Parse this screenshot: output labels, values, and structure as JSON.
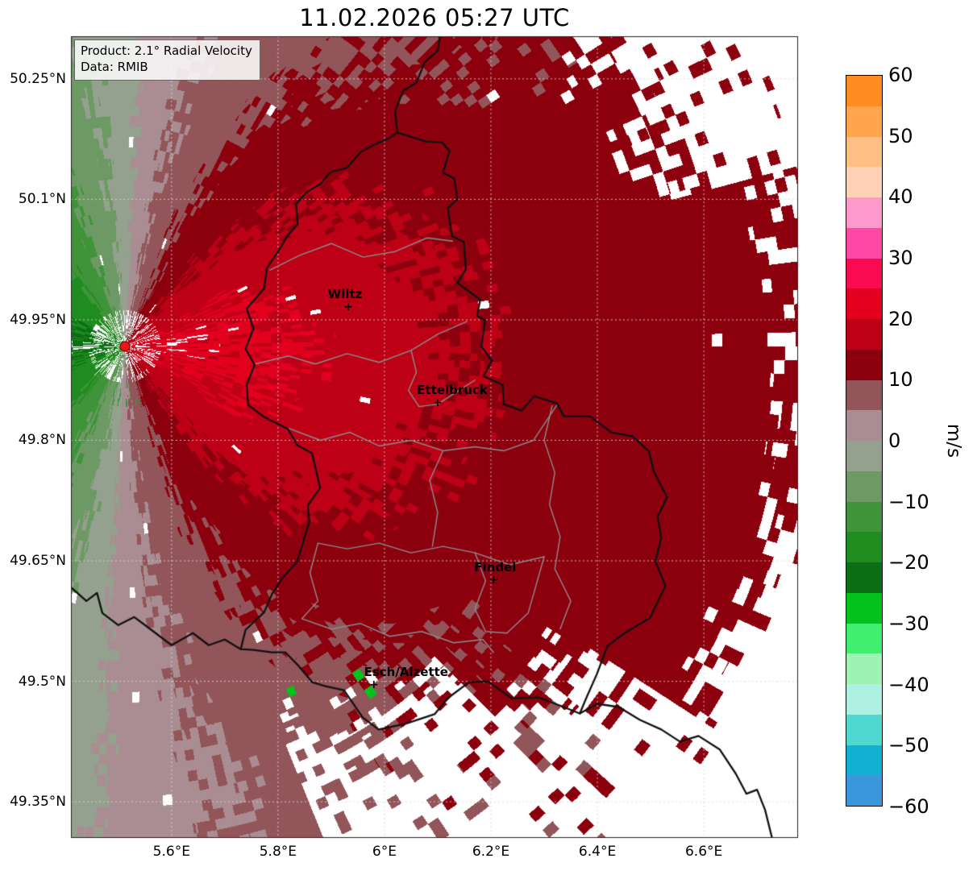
{
  "chart_data": {
    "type": "heatmap",
    "title": "11.02.2026 05:27 UTC",
    "product_label": "Product: 2.1° Radial Velocity",
    "data_label": "Data: RMIB",
    "unit": "m/s",
    "axes": {
      "xlim_lon": [
        5.411,
        6.777
      ],
      "ylim_lat": [
        49.305,
        50.303
      ],
      "x_tick_lons": [
        5.6,
        5.8,
        6.0,
        6.2,
        6.4,
        6.6
      ],
      "x_tick_labels": [
        "5.6°E",
        "5.8°E",
        "6°E",
        "6.2°E",
        "6.4°E",
        "6.6°E"
      ],
      "y_tick_lats": [
        50.25,
        50.1,
        49.95,
        49.8,
        49.65,
        49.5,
        49.35
      ],
      "y_tick_labels": [
        "50.25°N",
        "50.1°N",
        "49.95°N",
        "49.8°N",
        "49.65°N",
        "49.5°N",
        "49.35°N"
      ],
      "grid_style": "dashed",
      "grid_color": "#d2d2d2"
    },
    "colorbar": {
      "vmin": -60,
      "vmax": 60,
      "band_step": 5,
      "tick_values": [
        60,
        50,
        40,
        30,
        20,
        10,
        0,
        -10,
        -20,
        -30,
        -40,
        -50,
        -60
      ],
      "tick_labels": [
        "60",
        "50",
        "40",
        "30",
        "20",
        "10",
        "0",
        "−10",
        "−20",
        "−30",
        "−40",
        "−50",
        "−60"
      ],
      "band_colors_top_to_bottom": [
        "#ff8c1f",
        "#ffa64d",
        "#ffbf85",
        "#ffd2b8",
        "#ff99cc",
        "#ff47a3",
        "#fa0a50",
        "#e3001f",
        "#bd0016",
        "#8c000e",
        "#92555a",
        "#a98d92",
        "#93a18e",
        "#6d9a64",
        "#3f9338",
        "#1e8c1e",
        "#0c6e14",
        "#04c21c",
        "#40ef6e",
        "#9ef2b4",
        "#aef0e2",
        "#4fd8cf",
        "#13b1d1",
        "#3b97db"
      ]
    },
    "radar_site": {
      "lon": 5.512,
      "lat": 49.917,
      "marker_color": "#e81717"
    },
    "cities": [
      {
        "name": "Wiltz",
        "lon": 5.932,
        "lat": 49.966,
        "label_dx": -4
      },
      {
        "name": "Ettelbruck",
        "lon": 6.1,
        "lat": 49.847,
        "label_dx": 18
      },
      {
        "name": "Findel",
        "lon": 6.205,
        "lat": 49.626,
        "label_dx": 2
      },
      {
        "name": "Esch/Alzette",
        "lon": 5.98,
        "lat": 49.496,
        "label_dx": 40
      }
    ],
    "velocity_field": {
      "description": "Doppler radial velocity: outbound flow (dark red, ~10-22 m/s) everywhere east of the radar, inbound flow (green, ~5-22 m/s) west of the radar, grey near-zero band along the north-south zero isodop through the radar site; white = no data (far range, ground clutter and echo gaps to the NE and S).",
      "speed_near_radar_mps": 21,
      "speed_far_range_mps": 13,
      "flow_toward_azimuth_deg_from_east": 3
    },
    "map_borders": {
      "country_border_color": "#111111",
      "district_border_color": "#8c8c8c",
      "luxembourg_ring": [
        [
          6.024,
          50.183
        ],
        [
          6.078,
          50.172
        ],
        [
          6.108,
          50.171
        ],
        [
          6.122,
          50.16
        ],
        [
          6.11,
          50.133
        ],
        [
          6.131,
          50.126
        ],
        [
          6.137,
          50.1
        ],
        [
          6.119,
          50.089
        ],
        [
          6.127,
          50.054
        ],
        [
          6.149,
          50.047
        ],
        [
          6.153,
          50.013
        ],
        [
          6.137,
          49.996
        ],
        [
          6.18,
          49.975
        ],
        [
          6.174,
          49.955
        ],
        [
          6.189,
          49.949
        ],
        [
          6.182,
          49.917
        ],
        [
          6.202,
          49.899
        ],
        [
          6.186,
          49.88
        ],
        [
          6.222,
          49.869
        ],
        [
          6.224,
          49.845
        ],
        [
          6.258,
          49.837
        ],
        [
          6.281,
          49.855
        ],
        [
          6.324,
          49.846
        ],
        [
          6.337,
          49.83
        ],
        [
          6.386,
          49.83
        ],
        [
          6.426,
          49.81
        ],
        [
          6.466,
          49.805
        ],
        [
          6.497,
          49.786
        ],
        [
          6.506,
          49.761
        ],
        [
          6.531,
          49.729
        ],
        [
          6.513,
          49.705
        ],
        [
          6.52,
          49.679
        ],
        [
          6.509,
          49.649
        ],
        [
          6.528,
          49.619
        ],
        [
          6.499,
          49.579
        ],
        [
          6.449,
          49.559
        ],
        [
          6.419,
          49.544
        ],
        [
          6.399,
          49.509
        ],
        [
          6.379,
          49.479
        ],
        [
          6.367,
          49.46
        ],
        [
          6.329,
          49.47
        ],
        [
          6.289,
          49.48
        ],
        [
          6.239,
          49.479
        ],
        [
          6.194,
          49.5
        ],
        [
          6.159,
          49.499
        ],
        [
          6.119,
          49.479
        ],
        [
          6.094,
          49.459
        ],
        [
          6.039,
          49.447
        ],
        [
          5.989,
          49.44
        ],
        [
          5.959,
          49.455
        ],
        [
          5.924,
          49.489
        ],
        [
          5.889,
          49.494
        ],
        [
          5.864,
          49.499
        ],
        [
          5.839,
          49.519
        ],
        [
          5.814,
          49.536
        ],
        [
          5.789,
          49.536
        ],
        [
          5.754,
          49.539
        ],
        [
          5.73,
          49.54
        ],
        [
          5.739,
          49.564
        ],
        [
          5.774,
          49.586
        ],
        [
          5.789,
          49.609
        ],
        [
          5.809,
          49.629
        ],
        [
          5.836,
          49.649
        ],
        [
          5.859,
          49.699
        ],
        [
          5.856,
          49.719
        ],
        [
          5.879,
          49.741
        ],
        [
          5.864,
          49.784
        ],
        [
          5.836,
          49.794
        ],
        [
          5.819,
          49.814
        ],
        [
          5.774,
          49.829
        ],
        [
          5.744,
          49.844
        ],
        [
          5.741,
          49.869
        ],
        [
          5.756,
          49.894
        ],
        [
          5.739,
          49.914
        ],
        [
          5.754,
          49.939
        ],
        [
          5.741,
          49.964
        ],
        [
          5.774,
          49.989
        ],
        [
          5.779,
          50.014
        ],
        [
          5.804,
          50.039
        ],
        [
          5.817,
          50.054
        ],
        [
          5.837,
          50.069
        ],
        [
          5.834,
          50.094
        ],
        [
          5.854,
          50.109
        ],
        [
          5.879,
          50.119
        ],
        [
          5.899,
          50.134
        ],
        [
          5.929,
          50.139
        ],
        [
          5.956,
          50.159
        ],
        [
          5.984,
          50.169
        ],
        [
          6.009,
          50.176
        ],
        [
          6.024,
          50.183
        ]
      ],
      "belgium_germany_border": [
        [
          6.024,
          50.183
        ],
        [
          6.02,
          50.21
        ],
        [
          6.035,
          50.235
        ],
        [
          6.06,
          50.245
        ],
        [
          6.075,
          50.27
        ],
        [
          6.1,
          50.285
        ],
        [
          6.105,
          50.305
        ]
      ],
      "france_belgium_border": [
        [
          5.411,
          49.617
        ],
        [
          5.44,
          49.6
        ],
        [
          5.46,
          49.61
        ],
        [
          5.47,
          49.585
        ],
        [
          5.5,
          49.57
        ],
        [
          5.53,
          49.58
        ],
        [
          5.56,
          49.565
        ],
        [
          5.6,
          49.545
        ],
        [
          5.64,
          49.56
        ],
        [
          5.67,
          49.545
        ],
        [
          5.7,
          49.552
        ],
        [
          5.73,
          49.54
        ]
      ],
      "france_germany_border": [
        [
          6.367,
          49.46
        ],
        [
          6.4,
          49.472
        ],
        [
          6.44,
          49.468
        ],
        [
          6.48,
          49.452
        ],
        [
          6.52,
          49.44
        ],
        [
          6.555,
          49.425
        ],
        [
          6.59,
          49.432
        ],
        [
          6.63,
          49.415
        ],
        [
          6.66,
          49.385
        ],
        [
          6.68,
          49.36
        ],
        [
          6.7,
          49.365
        ],
        [
          6.715,
          49.34
        ],
        [
          6.73,
          49.3
        ]
      ],
      "district_lines": [
        [
          [
            5.785,
            50.012
          ],
          [
            5.84,
            50.03
          ],
          [
            5.9,
            50.045
          ],
          [
            5.96,
            50.028
          ],
          [
            6.02,
            50.035
          ],
          [
            6.08,
            50.052
          ],
          [
            6.128,
            50.048
          ]
        ],
        [
          [
            5.757,
            49.895
          ],
          [
            5.82,
            49.905
          ],
          [
            5.87,
            49.895
          ],
          [
            5.93,
            49.908
          ],
          [
            5.99,
            49.897
          ],
          [
            6.05,
            49.912
          ],
          [
            6.1,
            49.932
          ],
          [
            6.155,
            49.948
          ]
        ],
        [
          [
            6.05,
            49.912
          ],
          [
            6.06,
            49.885
          ],
          [
            6.045,
            49.862
          ],
          [
            6.065,
            49.842
          ],
          [
            6.1,
            49.845
          ],
          [
            6.135,
            49.86
          ],
          [
            6.17,
            49.875
          ]
        ],
        [
          [
            5.82,
            49.815
          ],
          [
            5.88,
            49.8
          ],
          [
            5.935,
            49.81
          ],
          [
            5.99,
            49.793
          ],
          [
            6.05,
            49.8
          ],
          [
            6.11,
            49.787
          ],
          [
            6.17,
            49.792
          ],
          [
            6.225,
            49.787
          ],
          [
            6.28,
            49.8
          ],
          [
            6.325,
            49.845
          ]
        ],
        [
          [
            6.315,
            49.843
          ],
          [
            6.3,
            49.8
          ],
          [
            6.32,
            49.76
          ],
          [
            6.31,
            49.72
          ],
          [
            6.33,
            49.68
          ],
          [
            6.32,
            49.64
          ],
          [
            6.35,
            49.6
          ],
          [
            6.33,
            49.565
          ]
        ],
        [
          [
            5.875,
            49.672
          ],
          [
            5.93,
            49.665
          ],
          [
            5.99,
            49.672
          ],
          [
            6.05,
            49.66
          ],
          [
            6.11,
            49.668
          ],
          [
            6.17,
            49.66
          ],
          [
            6.235,
            49.645
          ],
          [
            6.3,
            49.655
          ]
        ],
        [
          [
            6.11,
            49.787
          ],
          [
            6.085,
            49.75
          ],
          [
            6.1,
            49.71
          ],
          [
            6.09,
            49.668
          ]
        ],
        [
          [
            5.845,
            49.578
          ],
          [
            5.9,
            49.565
          ],
          [
            5.955,
            49.572
          ],
          [
            6.01,
            49.556
          ],
          [
            6.07,
            49.562
          ],
          [
            6.13,
            49.548
          ],
          [
            6.185,
            49.552
          ],
          [
            6.205,
            49.536
          ]
        ],
        [
          [
            5.875,
            49.672
          ],
          [
            5.86,
            49.635
          ],
          [
            5.875,
            49.6
          ],
          [
            5.845,
            49.578
          ]
        ],
        [
          [
            6.17,
            49.66
          ],
          [
            6.19,
            49.625
          ],
          [
            6.17,
            49.59
          ],
          [
            6.19,
            49.562
          ],
          [
            6.23,
            49.56
          ],
          [
            6.27,
            49.585
          ],
          [
            6.3,
            49.655
          ]
        ]
      ]
    }
  }
}
